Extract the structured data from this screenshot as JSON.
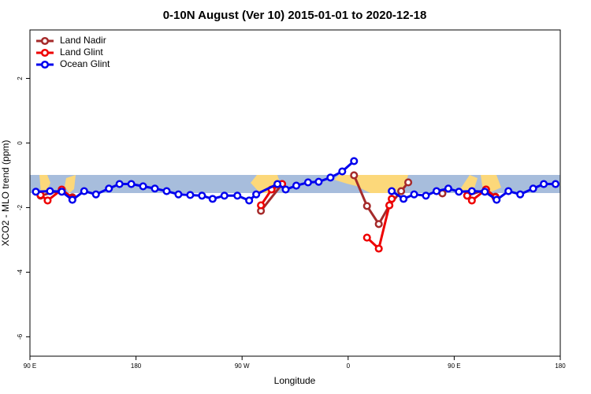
{
  "chart_data": {
    "type": "line",
    "title": "0-10N August (Ver 10)   2015-01-01 to 2020-12-18",
    "x_label": "Longitude",
    "y_label": "XCO2 - MLO trend (ppm)",
    "xlim": [
      90,
      540
    ],
    "ylim": [
      -6.6,
      3.5
    ],
    "xticks": [
      {
        "value": 90,
        "label": "90 E"
      },
      180,
      {
        "value": 270,
        "label": "90 W"
      },
      {
        "value": 360,
        "label": "0"
      },
      {
        "value": 450,
        "label": "90 E"
      },
      {
        "value": 540,
        "label": "180"
      }
    ],
    "yticks": [
      -6,
      -4,
      -2,
      0,
      2
    ],
    "legend": "top-left",
    "series": [
      {
        "name": "Land Nadir",
        "color": "#a52a2a",
        "x": [
          99,
          117,
          126,
          null,
          286,
          304,
          null,
          365,
          376,
          386,
          395,
          405,
          411,
          null,
          440,
          null,
          461,
          477,
          485
        ],
        "values": [
          -1.63,
          -1.46,
          -1.68,
          null,
          -2.1,
          -1.27,
          null,
          -1.0,
          -1.95,
          -2.51,
          -1.93,
          -1.49,
          -1.22,
          null,
          -1.56,
          null,
          -1.63,
          -1.44,
          -1.66
        ]
      },
      {
        "name": "Land Glint",
        "color": "#ee0000",
        "x": [
          99,
          105,
          117,
          126,
          null,
          286,
          295,
          304,
          null,
          376,
          386,
          395,
          397,
          null,
          461,
          465,
          477,
          485
        ],
        "values": [
          -1.61,
          -1.78,
          -1.44,
          -1.71,
          null,
          -1.93,
          -1.44,
          -1.27,
          null,
          -2.93,
          -3.27,
          -1.93,
          -1.73,
          null,
          -1.63,
          -1.78,
          -1.44,
          -1.68
        ]
      },
      {
        "name": "Ocean Glint",
        "color": "#0000ee",
        "x": [
          95,
          107,
          117,
          126,
          136,
          146,
          157,
          166,
          176,
          186,
          196,
          206,
          216,
          226,
          236,
          245,
          255,
          266,
          276,
          282,
          300,
          307,
          316,
          326,
          335,
          345,
          355,
          365,
          null,
          397,
          407,
          416,
          426,
          435,
          445,
          454,
          465,
          476,
          486,
          496,
          506,
          517,
          526,
          536
        ],
        "values": [
          -1.51,
          -1.49,
          -1.51,
          -1.76,
          -1.49,
          -1.59,
          -1.41,
          -1.27,
          -1.27,
          -1.34,
          -1.41,
          -1.49,
          -1.59,
          -1.61,
          -1.63,
          -1.73,
          -1.63,
          -1.63,
          -1.78,
          -1.59,
          -1.27,
          -1.44,
          -1.32,
          -1.22,
          -1.2,
          -1.07,
          -0.88,
          -0.56,
          null,
          -1.49,
          -1.73,
          -1.59,
          -1.63,
          -1.49,
          -1.41,
          -1.51,
          -1.49,
          -1.51,
          -1.76,
          -1.49,
          -1.59,
          -1.41,
          -1.27,
          -1.27
        ]
      }
    ]
  }
}
